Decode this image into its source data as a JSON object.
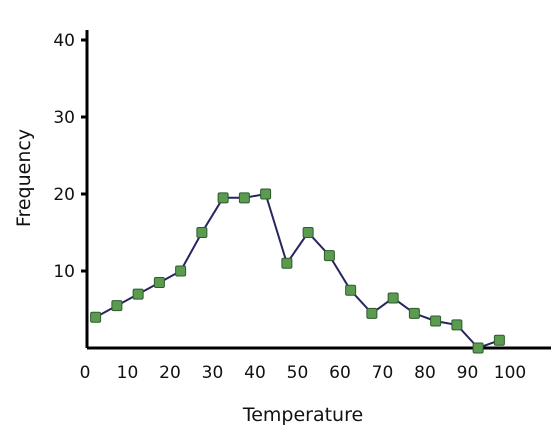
{
  "chart_data": {
    "type": "line",
    "xlabel": "Temperature",
    "ylabel": "Frequency",
    "xlim": [
      0,
      100
    ],
    "ylim": [
      0,
      40
    ],
    "x_ticks": [
      0,
      10,
      20,
      30,
      40,
      50,
      60,
      70,
      80,
      90,
      100
    ],
    "y_ticks": [
      10,
      20,
      30,
      40
    ],
    "grid": false,
    "legend": "none",
    "series": [
      {
        "x": [
          2.5,
          7.5,
          12.5,
          17.5,
          22.5,
          27.5,
          32.5,
          37.5,
          42.5,
          47.5,
          52.5,
          57.5,
          62.5,
          67.5,
          72.5,
          77.5,
          82.5,
          87.5,
          92.5,
          97.5
        ],
        "values": [
          4,
          5.5,
          7,
          8.5,
          10,
          15,
          19.5,
          19.5,
          20,
          11,
          15,
          12,
          7.5,
          4.5,
          6.5,
          4.5,
          3.5,
          3,
          0,
          1
        ]
      }
    ],
    "colors": {
      "line": "#26265e",
      "marker": "#5b9b4f",
      "axis": "#000000"
    }
  }
}
